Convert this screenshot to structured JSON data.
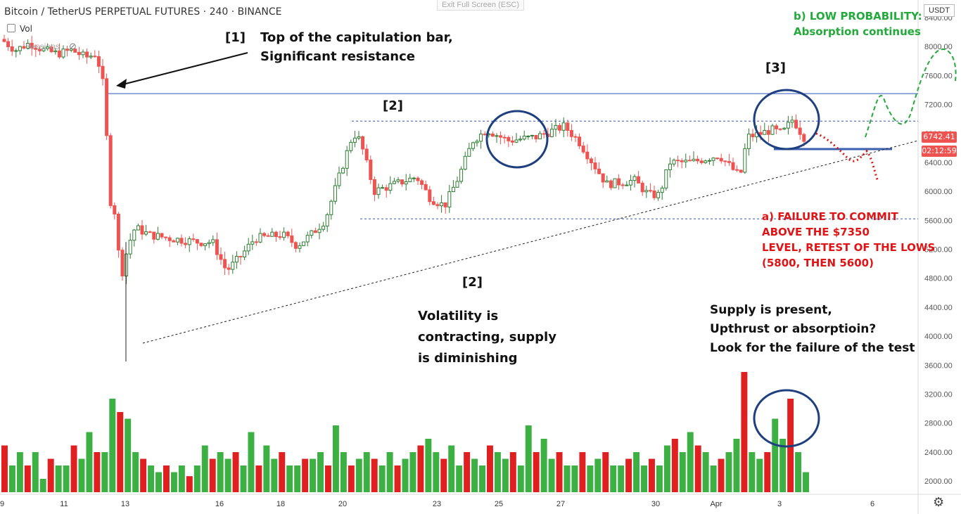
{
  "header": {
    "symbol_title": "Bitcoin / TetherUS PERPETUAL FUTURES · 240 · BINANCE",
    "vol_label": "Vol",
    "sessions_label": "Sessions",
    "exit_fullscreen": "Exit Full Screen (ESC)",
    "currency_badge": "USDT"
  },
  "price_tags": {
    "last_price": "6742.41",
    "countdown": "02:12:59",
    "last_price_color": "#ef5350",
    "countdown_color": "#ef5350"
  },
  "annotations": {
    "label_1": "[1]",
    "note_1_line1": "Top of the capitulation bar,",
    "note_1_line2": "Significant resistance",
    "label_2_top": "[2]",
    "label_2_bottom": "[2]",
    "note_2_line1": "Volatility is",
    "note_2_line2": "contracting, supply",
    "note_2_line3": "is diminishing",
    "label_3": "[3]",
    "note_3_line1": "Supply is present,",
    "note_3_line2": "Upthrust or absorptioin?",
    "note_3_line3": "Look for the failure of the test",
    "scenario_b_line1": "b) LOW PROBABILITY:",
    "scenario_b_line2": "Absorption continues",
    "scenario_a_line1": "a) FAILURE TO COMMIT",
    "scenario_a_line2": "ABOVE THE $7350",
    "scenario_a_line3": "LEVEL, RETEST OF THE LOWS",
    "scenario_a_line4": "(5800, THEN 5600)"
  },
  "colors": {
    "up": "#26a69a",
    "candle_up": "#2e7d32",
    "candle_down": "#ef5350",
    "vol_up": "#3cb043",
    "vol_down": "#e02020",
    "annotation_blue": "#2a4b8d",
    "scenario_green": "#22aa3a",
    "scenario_red": "#e01414"
  },
  "chart_data": {
    "type": "candlestick",
    "title": "",
    "y_axis": {
      "ticks": [
        "8400.00",
        "8000.00",
        "7600.00",
        "7200.00",
        "6800.00",
        "6400.00",
        "6000.00",
        "5600.00",
        "5200.00",
        "4800.00",
        "4400.00",
        "4000.00",
        "3600.00",
        "3200.00",
        "2800.00",
        "2400.00",
        "2000.00"
      ],
      "price_range": [
        3600,
        8400
      ]
    },
    "x_axis": {
      "ticks": [
        "9",
        "11",
        "13",
        "16",
        "18",
        "20",
        "23",
        "25",
        "27",
        "30",
        "Apr",
        "3",
        "6"
      ]
    },
    "levels": {
      "resistance_capitulation_top": 7350,
      "range_high_dashed": 6970,
      "range_low_dashed": 5620,
      "support_box_level": 6590
    },
    "volume_sizes_relative": [
      0.35,
      0.2,
      0.3,
      0.2,
      0.3,
      0.1,
      0.25,
      0.2,
      0.2,
      0.35,
      0.25,
      0.45,
      0.3,
      0.3,
      0.7,
      0.6,
      0.55,
      0.3,
      0.25,
      0.2,
      0.15,
      0.2,
      0.15,
      0.2,
      0.12,
      0.2,
      0.35,
      0.25,
      0.3,
      0.25,
      0.3,
      0.2,
      0.45,
      0.2,
      0.35,
      0.25,
      0.3,
      0.2,
      0.2,
      0.25,
      0.25,
      0.3,
      0.2,
      0.5,
      0.3,
      0.2,
      0.25,
      0.3,
      0.25,
      0.2,
      0.3,
      0.2,
      0.25,
      0.3,
      0.35,
      0.4,
      0.3,
      0.25,
      0.35,
      0.2,
      0.3,
      0.25,
      0.2,
      0.35,
      0.3,
      0.25,
      0.3,
      0.2,
      0.5,
      0.3,
      0.4,
      0.25,
      0.3,
      0.2,
      0.2,
      0.3,
      0.2,
      0.25,
      0.3,
      0.2,
      0.2,
      0.25,
      0.3,
      0.2,
      0.25,
      0.2,
      0.35,
      0.4,
      0.3,
      0.45,
      0.35,
      0.3,
      0.2,
      0.25,
      0.3,
      0.4,
      0.9,
      0.3,
      0.25,
      0.3,
      0.55,
      0.4,
      0.7,
      0.3,
      0.15
    ]
  }
}
